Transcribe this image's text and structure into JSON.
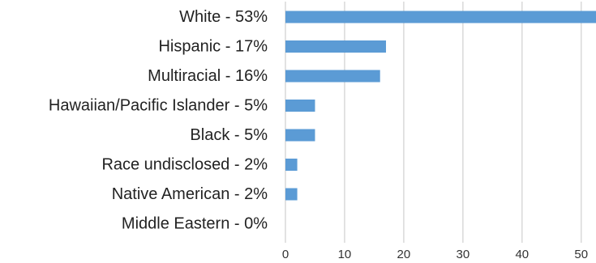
{
  "chart_data": {
    "type": "bar",
    "orientation": "horizontal",
    "categories": [
      "White - 53%",
      "Hispanic - 17%",
      "Multiracial - 16%",
      "Hawaiian/Pacific Islander - 5%",
      "Black - 5%",
      "Race undisclosed - 2%",
      "Native American - 2%",
      "Middle Eastern - 0%"
    ],
    "values": [
      53,
      17,
      16,
      5,
      5,
      2,
      2,
      0
    ],
    "xlim": [
      0,
      52.5
    ],
    "xticks": [
      "0",
      "10",
      "20",
      "30",
      "40",
      "50"
    ],
    "grid": "vertical",
    "bar_color": "#5b9bd5",
    "grid_color": "#d9d9d9"
  }
}
